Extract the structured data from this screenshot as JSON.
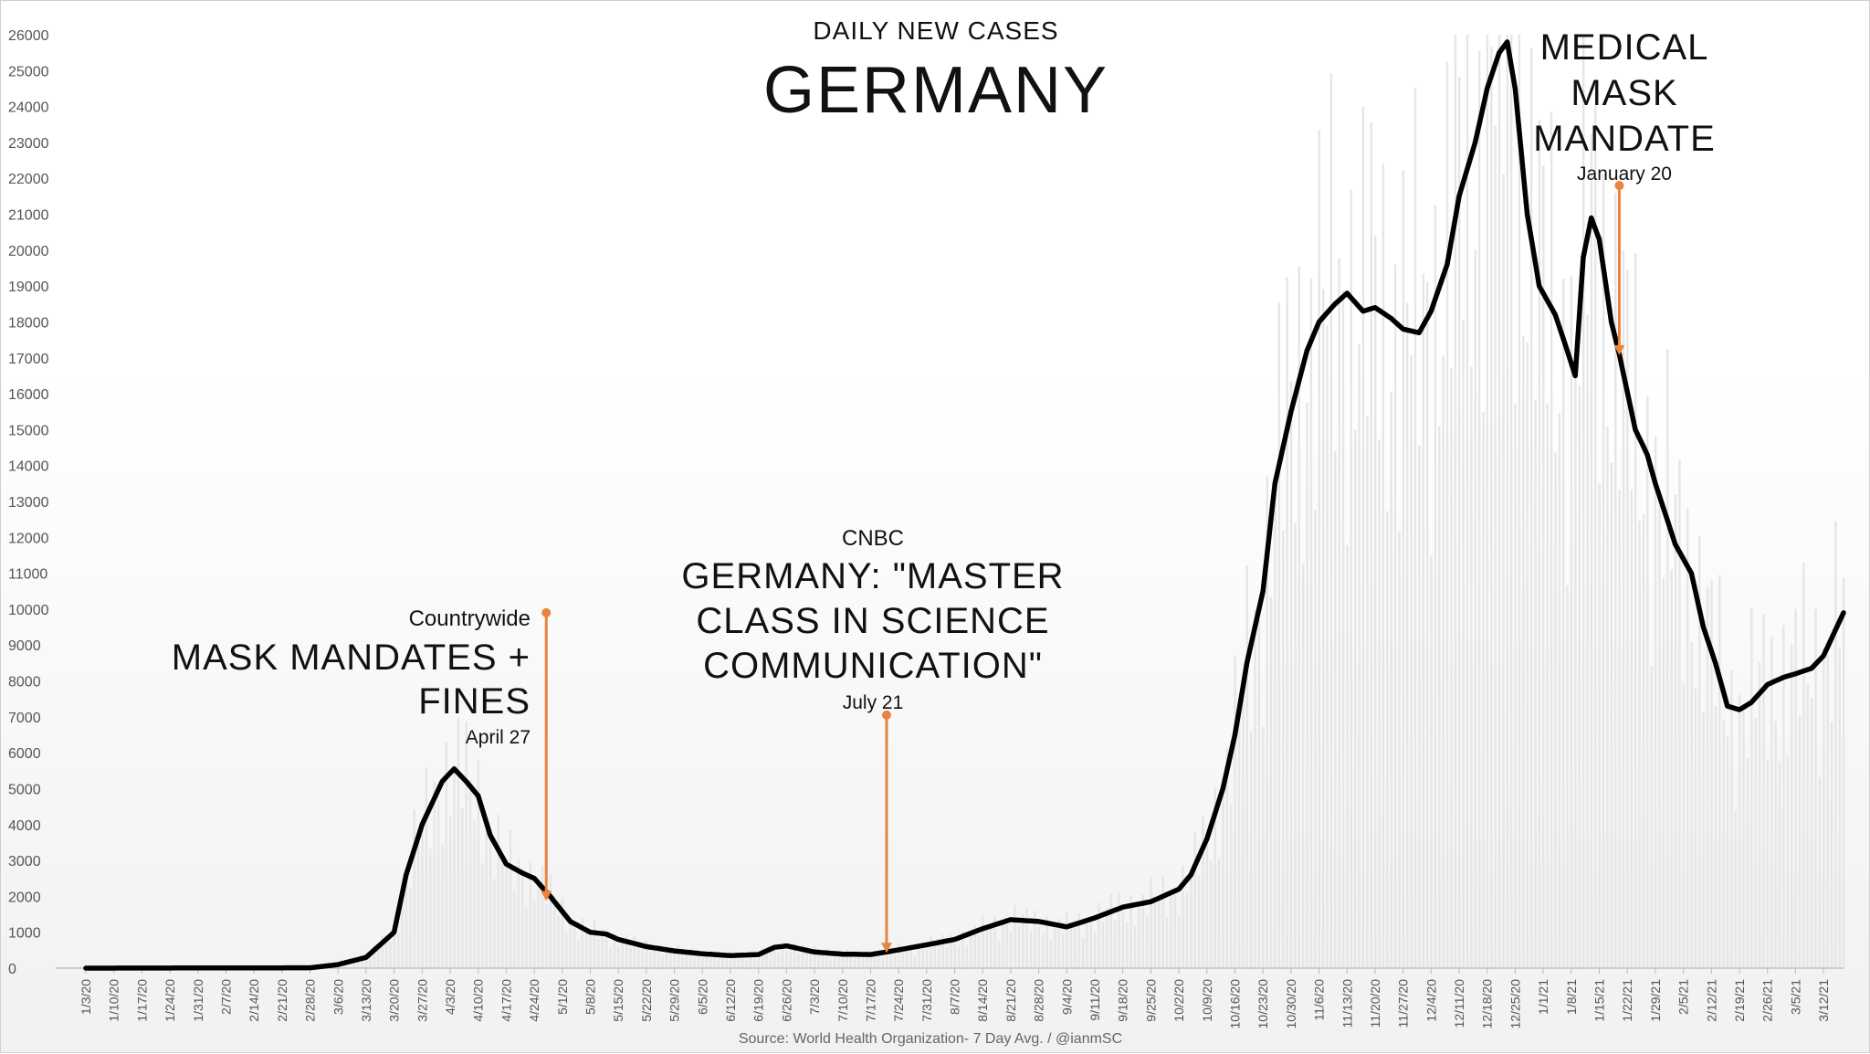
{
  "chart_data": {
    "type": "line",
    "title": "GERMANY",
    "subtitle": "DAILY NEW CASES",
    "source": "Source: World Health Organization- 7 Day Avg. / @ianmSC",
    "ylim": [
      0,
      26000
    ],
    "yticks": [
      0,
      1000,
      2000,
      3000,
      4000,
      5000,
      6000,
      7000,
      8000,
      9000,
      10000,
      11000,
      12000,
      13000,
      14000,
      15000,
      16000,
      17000,
      18000,
      19000,
      20000,
      21000,
      22000,
      23000,
      24000,
      25000,
      26000
    ],
    "x_start": "1/3/20",
    "x_end": "3/17/21",
    "xticks": [
      "1/3/20",
      "1/10/20",
      "1/17/20",
      "1/24/20",
      "1/31/20",
      "2/7/20",
      "2/14/20",
      "2/21/20",
      "2/28/20",
      "3/6/20",
      "3/13/20",
      "3/20/20",
      "3/27/20",
      "4/3/20",
      "4/10/20",
      "4/17/20",
      "4/24/20",
      "5/1/20",
      "5/8/20",
      "5/15/20",
      "5/22/20",
      "5/29/20",
      "6/5/20",
      "6/12/20",
      "6/19/20",
      "6/26/20",
      "7/3/20",
      "7/10/20",
      "7/17/20",
      "7/24/20",
      "7/31/20",
      "8/7/20",
      "8/14/20",
      "8/21/20",
      "8/28/20",
      "9/4/20",
      "9/11/20",
      "9/18/20",
      "9/25/20",
      "10/2/20",
      "10/9/20",
      "10/16/20",
      "10/23/20",
      "10/30/20",
      "11/6/20",
      "11/13/20",
      "11/20/20",
      "11/27/20",
      "12/4/20",
      "12/11/20",
      "12/18/20",
      "12/25/20",
      "1/1/21",
      "1/8/21",
      "1/15/21",
      "1/22/21",
      "1/29/21",
      "2/5/21",
      "2/12/21",
      "2/19/21",
      "2/26/21",
      "3/5/21",
      "3/12/21"
    ],
    "series": [
      {
        "values": [
          [
            "1/3/20",
            0
          ],
          [
            "2/28/20",
            10
          ],
          [
            "3/6/20",
            100
          ],
          [
            "3/13/20",
            300
          ],
          [
            "3/17/20",
            700
          ],
          [
            "3/20/20",
            1000
          ],
          [
            "3/23/20",
            2600
          ],
          [
            "3/27/20",
            4000
          ],
          [
            "4/1/20",
            5200
          ],
          [
            "4/4/20",
            5550
          ],
          [
            "4/7/20",
            5200
          ],
          [
            "4/10/20",
            4800
          ],
          [
            "4/13/20",
            3700
          ],
          [
            "4/17/20",
            2900
          ],
          [
            "4/21/20",
            2650
          ],
          [
            "4/24/20",
            2500
          ],
          [
            "4/28/20",
            2000
          ],
          [
            "5/3/20",
            1300
          ],
          [
            "5/8/20",
            1000
          ],
          [
            "5/12/20",
            950
          ],
          [
            "5/15/20",
            800
          ],
          [
            "5/22/20",
            600
          ],
          [
            "5/29/20",
            480
          ],
          [
            "6/5/20",
            400
          ],
          [
            "6/12/20",
            350
          ],
          [
            "6/19/20",
            380
          ],
          [
            "6/23/20",
            580
          ],
          [
            "6/26/20",
            620
          ],
          [
            "7/3/20",
            450
          ],
          [
            "7/10/20",
            390
          ],
          [
            "7/17/20",
            380
          ],
          [
            "7/21/20",
            450
          ],
          [
            "7/31/20",
            650
          ],
          [
            "8/7/20",
            800
          ],
          [
            "8/14/20",
            1100
          ],
          [
            "8/21/20",
            1350
          ],
          [
            "8/28/20",
            1300
          ],
          [
            "9/4/20",
            1150
          ],
          [
            "9/11/20",
            1400
          ],
          [
            "9/18/20",
            1700
          ],
          [
            "9/25/20",
            1850
          ],
          [
            "10/2/20",
            2200
          ],
          [
            "10/5/20",
            2600
          ],
          [
            "10/9/20",
            3600
          ],
          [
            "10/13/20",
            5000
          ],
          [
            "10/16/20",
            6500
          ],
          [
            "10/19/20",
            8500
          ],
          [
            "10/23/20",
            10500
          ],
          [
            "10/26/20",
            13500
          ],
          [
            "10/30/20",
            15500
          ],
          [
            "11/3/20",
            17200
          ],
          [
            "11/6/20",
            18000
          ],
          [
            "11/10/20",
            18500
          ],
          [
            "11/13/20",
            18800
          ],
          [
            "11/17/20",
            18300
          ],
          [
            "11/20/20",
            18400
          ],
          [
            "11/24/20",
            18100
          ],
          [
            "11/27/20",
            17800
          ],
          [
            "12/1/20",
            17700
          ],
          [
            "12/4/20",
            18300
          ],
          [
            "12/8/20",
            19600
          ],
          [
            "12/11/20",
            21500
          ],
          [
            "12/15/20",
            23000
          ],
          [
            "12/18/20",
            24500
          ],
          [
            "12/21/20",
            25500
          ],
          [
            "12/23/20",
            25800
          ],
          [
            "12/25/20",
            24500
          ],
          [
            "12/28/20",
            21000
          ],
          [
            "12/31/20",
            19000
          ],
          [
            "1/4/21",
            18200
          ],
          [
            "1/7/21",
            17200
          ],
          [
            "1/9/21",
            16500
          ],
          [
            "1/11/21",
            19800
          ],
          [
            "1/13/21",
            20900
          ],
          [
            "1/15/21",
            20300
          ],
          [
            "1/18/21",
            18000
          ],
          [
            "1/20/21",
            17100
          ],
          [
            "1/24/21",
            15000
          ],
          [
            "1/27/21",
            14300
          ],
          [
            "1/29/21",
            13500
          ],
          [
            "2/3/21",
            11800
          ],
          [
            "2/7/21",
            11000
          ],
          [
            "2/10/21",
            9500
          ],
          [
            "2/13/21",
            8500
          ],
          [
            "2/16/21",
            7300
          ],
          [
            "2/19/21",
            7200
          ],
          [
            "2/22/21",
            7400
          ],
          [
            "2/26/21",
            7900
          ],
          [
            "3/2/21",
            8100
          ],
          [
            "3/5/21",
            8200
          ],
          [
            "3/9/21",
            8350
          ],
          [
            "3/12/21",
            8700
          ],
          [
            "3/17/21",
            9900
          ]
        ]
      }
    ],
    "annotations": [
      {
        "label_small": "Countrywide",
        "label_big_1": "MASK MANDATES +",
        "label_big_2": "FINES",
        "date_label": "April 27",
        "x": "4/27/20",
        "y_from": 9900,
        "y_to": 1900
      },
      {
        "label_small": "CNBC",
        "label_big_1": "GERMANY: \"MASTER",
        "label_big_2": "CLASS IN SCIENCE",
        "label_big_3": "COMMUNICATION\"",
        "date_label": "July 21",
        "x": "7/21/20",
        "y_from": 7050,
        "y_to": 450
      },
      {
        "label_big_1": "MEDICAL",
        "label_big_2": "MASK",
        "label_big_3": "MANDATE",
        "date_label": "January 20",
        "x": "1/20/21",
        "y_from": 21800,
        "y_to": 17100
      }
    ],
    "colors": {
      "line": "#000000",
      "arrow": "#e8843c",
      "bars": "#e6e6e6"
    }
  }
}
